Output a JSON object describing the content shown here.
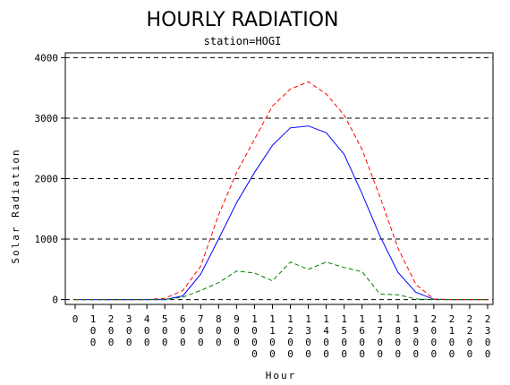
{
  "chart_data": {
    "type": "line",
    "title": "HOURLY RADIATION",
    "subtitle": "station=HOGI",
    "xlabel": "Hour",
    "ylabel": "Solar Radiation",
    "x_tick_labels": [
      "0",
      "100",
      "200",
      "300",
      "400",
      "500",
      "600",
      "700",
      "800",
      "900",
      "1000",
      "1100",
      "1200",
      "1300",
      "1400",
      "1500",
      "1600",
      "1700",
      "1800",
      "1900",
      "2000",
      "2100",
      "2200",
      "2300"
    ],
    "y_ticks": [
      0,
      1000,
      2000,
      3000,
      4000
    ],
    "y_tick_labels": [
      "0",
      "1000",
      "2000",
      "3000",
      "4000"
    ],
    "xlim": [
      0,
      23
    ],
    "ylim": [
      -80,
      4080
    ],
    "grid": "horizontal dashed",
    "x": [
      0,
      1,
      2,
      3,
      4,
      5,
      6,
      7,
      8,
      9,
      10,
      11,
      12,
      13,
      14,
      15,
      16,
      17,
      18,
      19,
      20,
      21,
      22,
      23
    ],
    "series": [
      {
        "color": "#0000ff",
        "style": "solid",
        "values": [
          0,
          0,
          0,
          0,
          0,
          0,
          60,
          420,
          1000,
          1600,
          2100,
          2550,
          2840,
          2870,
          2760,
          2400,
          1750,
          1050,
          450,
          120,
          5,
          0,
          0,
          0
        ]
      },
      {
        "color": "#ff0000",
        "style": "dashed",
        "values": [
          0,
          0,
          0,
          0,
          0,
          20,
          150,
          550,
          1400,
          2100,
          2650,
          3200,
          3480,
          3600,
          3400,
          3050,
          2480,
          1700,
          850,
          250,
          10,
          0,
          0,
          0
        ]
      },
      {
        "color": "#008000",
        "style": "dashed",
        "values": [
          0,
          0,
          0,
          0,
          0,
          0,
          40,
          150,
          280,
          470,
          440,
          310,
          620,
          500,
          620,
          530,
          460,
          90,
          80,
          10,
          0,
          0,
          0,
          0
        ]
      }
    ]
  }
}
